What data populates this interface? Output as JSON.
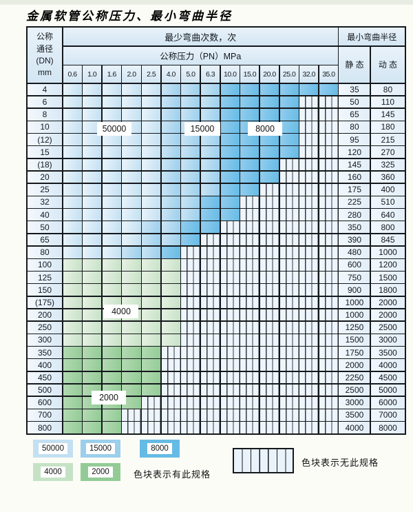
{
  "page": {
    "title": "金属软管公称压力、最小弯曲半径"
  },
  "table": {
    "dn_header_lines": [
      "公称",
      "通径",
      "(DN)",
      "mm"
    ],
    "cycles_header": "最少弯曲次数，次",
    "pressure_header": "公称压力（PN）MPa",
    "pressure_columns": [
      "0.6",
      "1.0",
      "1.6",
      "2.0",
      "2.5",
      "4.0",
      "5.0",
      "6.3",
      "10.0",
      "15.0",
      "20.0",
      "25.0",
      "32.0",
      "35.0"
    ],
    "radius_header": "最小弯曲半径",
    "static_label": "静 态",
    "dynamic_label": "动 态",
    "rows": [
      {
        "dn": "4",
        "static": "35",
        "dynamic": "80",
        "tone": "blue",
        "light": 5,
        "mid": 8,
        "end": 14
      },
      {
        "dn": "6",
        "static": "50",
        "dynamic": "110",
        "tone": "blue",
        "light": 5,
        "mid": 8,
        "end": 12
      },
      {
        "dn": "8",
        "static": "65",
        "dynamic": "145",
        "tone": "blue",
        "light": 5,
        "mid": 8,
        "end": 12
      },
      {
        "dn": "10",
        "static": "80",
        "dynamic": "180",
        "tone": "blue",
        "light": 5,
        "mid": 8,
        "end": 12
      },
      {
        "dn": "(12)",
        "static": "95",
        "dynamic": "215",
        "tone": "blue",
        "light": 5,
        "mid": 8,
        "end": 12
      },
      {
        "dn": "15",
        "static": "120",
        "dynamic": "270",
        "tone": "blue",
        "light": 5,
        "mid": 8,
        "end": 12
      },
      {
        "dn": "(18)",
        "static": "145",
        "dynamic": "325",
        "tone": "blue",
        "light": 5,
        "mid": 8,
        "end": 11
      },
      {
        "dn": "20",
        "static": "160",
        "dynamic": "360",
        "tone": "blue",
        "light": 5,
        "mid": 8,
        "end": 11
      },
      {
        "dn": "25",
        "static": "175",
        "dynamic": "400",
        "tone": "blue",
        "light": 5,
        "mid": 8,
        "end": 10
      },
      {
        "dn": "32",
        "static": "225",
        "dynamic": "510",
        "tone": "blue",
        "light": 5,
        "mid": 7,
        "end": 9
      },
      {
        "dn": "40",
        "static": "280",
        "dynamic": "640",
        "tone": "blue",
        "light": 5,
        "mid": 7,
        "end": 9
      },
      {
        "dn": "50",
        "static": "350",
        "dynamic": "800",
        "tone": "blue",
        "light": 4,
        "mid": 6,
        "end": 8
      },
      {
        "dn": "65",
        "static": "390",
        "dynamic": "845",
        "tone": "blue",
        "light": 4,
        "mid": 6,
        "end": 7
      },
      {
        "dn": "80",
        "static": "480",
        "dynamic": "1000",
        "tone": "blue",
        "light": 3,
        "mid": 5,
        "end": 6
      },
      {
        "dn": "100",
        "static": "600",
        "dynamic": "1200",
        "tone": "green-light",
        "end": 6
      },
      {
        "dn": "125",
        "static": "750",
        "dynamic": "1500",
        "tone": "green-light",
        "end": 6
      },
      {
        "dn": "150",
        "static": "900",
        "dynamic": "1800",
        "tone": "green-light",
        "end": 6
      },
      {
        "dn": "(175)",
        "static": "1000",
        "dynamic": "2000",
        "tone": "green-light",
        "end": 6
      },
      {
        "dn": "200",
        "static": "1000",
        "dynamic": "2000",
        "tone": "green-light",
        "end": 6
      },
      {
        "dn": "250",
        "static": "1250",
        "dynamic": "2500",
        "tone": "green-light",
        "end": 6
      },
      {
        "dn": "300",
        "static": "1500",
        "dynamic": "3000",
        "tone": "green-light",
        "end": 6
      },
      {
        "dn": "350",
        "static": "1750",
        "dynamic": "3500",
        "tone": "green-dark",
        "end": 5
      },
      {
        "dn": "400",
        "static": "2000",
        "dynamic": "4000",
        "tone": "green-dark",
        "end": 5
      },
      {
        "dn": "450",
        "static": "2250",
        "dynamic": "4500",
        "tone": "green-dark",
        "end": 5
      },
      {
        "dn": "500",
        "static": "2500",
        "dynamic": "5000",
        "tone": "green-dark",
        "end": 5
      },
      {
        "dn": "600",
        "static": "3000",
        "dynamic": "6000",
        "tone": "green-dark",
        "end": 4
      },
      {
        "dn": "700",
        "static": "3500",
        "dynamic": "7000",
        "tone": "green-dark",
        "end": 3
      },
      {
        "dn": "800",
        "static": "4000",
        "dynamic": "8000",
        "tone": "green-dark",
        "end": 3
      }
    ],
    "overlay_labels": [
      "50000",
      "15000",
      "8000",
      "4000",
      "2000"
    ]
  },
  "legend": {
    "chips": [
      {
        "label": "50000",
        "tone": "blue-light"
      },
      {
        "label": "15000",
        "tone": "blue-mid"
      },
      {
        "label": "8000",
        "tone": "blue-dark"
      },
      {
        "label": "4000",
        "tone": "green-light"
      },
      {
        "label": "2000",
        "tone": "green-dark"
      }
    ],
    "has_spec_text": "色块表示有此规格",
    "no_spec_text": "色块表示无此规格"
  },
  "colors": {
    "blue_light": "#c3e0f2",
    "blue_mid": "#9bcfec",
    "blue_dark": "#66bbe5",
    "green_light": "#c6e2c6",
    "green_dark": "#92cb95",
    "grid_line": "#14181c",
    "hatch_fill": "#eef5fc"
  }
}
